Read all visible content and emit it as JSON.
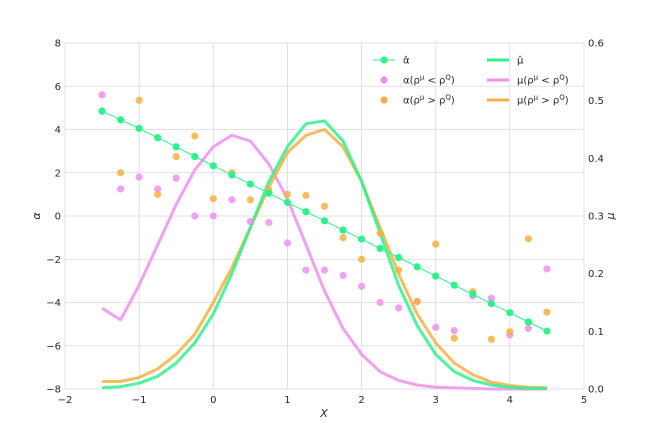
{
  "chart_data": {
    "type": "line",
    "xlabel": "X",
    "ylabel_left": "α",
    "ylabel_right": "μ",
    "xlim": [
      -2,
      5
    ],
    "ylim_left": [
      -8,
      8
    ],
    "ylim_right": [
      0,
      0.6
    ],
    "x_ticks": [
      -2,
      -1,
      0,
      1,
      2,
      3,
      4,
      5
    ],
    "x_tick_labels": [
      "−2",
      "−1",
      "0",
      "1",
      "2",
      "3",
      "4",
      "5"
    ],
    "y_left_ticks": [
      -8,
      -6,
      -4,
      -2,
      0,
      2,
      4,
      6,
      8
    ],
    "y_left_tick_labels": [
      "−8",
      "−6",
      "−4",
      "−2",
      "0",
      "2",
      "4",
      "6",
      "8"
    ],
    "y_right_ticks": [
      0,
      0.1,
      0.2,
      0.3,
      0.4,
      0.5,
      0.6
    ],
    "y_right_tick_labels": [
      "0.0",
      "0.1",
      "0.2",
      "0.3",
      "0.4",
      "0.5",
      "0.6"
    ],
    "grid": true,
    "legend_position": "top-right",
    "series": [
      {
        "name": "α̂",
        "legend_html": "α̂",
        "kind": "line-markers",
        "axis": "left",
        "color": "#2ef28c",
        "x": [
          -1.5,
          -1.25,
          -1.0,
          -0.75,
          -0.5,
          -0.25,
          0.0,
          0.25,
          0.5,
          0.75,
          1.0,
          1.25,
          1.5,
          1.75,
          2.0,
          2.25,
          2.5,
          2.75,
          3.0,
          3.25,
          3.5,
          3.75,
          4.0,
          4.25,
          4.5
        ],
        "y": [
          4.85,
          4.45,
          4.05,
          3.62,
          3.2,
          2.75,
          2.32,
          1.9,
          1.48,
          1.05,
          0.63,
          0.2,
          -0.22,
          -0.65,
          -1.07,
          -1.5,
          -1.92,
          -2.35,
          -2.78,
          -3.2,
          -3.62,
          -4.05,
          -4.47,
          -4.9,
          -5.32
        ]
      },
      {
        "name": "α(ρ^μ < ρ^Q)",
        "kind": "scatter",
        "axis": "left",
        "color": "#ee90ee",
        "x": [
          -1.5,
          -1.25,
          -1.0,
          -0.75,
          -0.5,
          -0.25,
          0.0,
          0.25,
          0.5,
          0.75,
          1.0,
          1.25,
          1.5,
          1.75,
          2.0,
          2.25,
          2.5,
          2.75,
          3.0,
          3.25,
          3.5,
          3.75,
          4.0,
          4.25,
          4.5
        ],
        "y": [
          5.6,
          1.25,
          1.8,
          1.25,
          1.75,
          0.0,
          0.0,
          0.75,
          -0.25,
          -0.3,
          -1.25,
          -2.5,
          -2.5,
          -2.75,
          -3.25,
          -4.0,
          -4.25,
          -3.95,
          -5.15,
          -5.3,
          -3.7,
          -3.8,
          -5.5,
          -5.2,
          -2.45
        ]
      },
      {
        "name": "α(ρ^μ > ρ^Q)",
        "kind": "scatter",
        "axis": "left",
        "color": "#f5b041",
        "x": [
          -1.5,
          -1.25,
          -1.0,
          -0.75,
          -0.5,
          -0.25,
          0.0,
          0.25,
          0.5,
          0.75,
          1.0,
          1.25,
          1.5,
          1.75,
          2.0,
          2.25,
          2.5,
          2.75,
          3.0,
          3.25,
          3.5,
          3.75,
          4.0,
          4.25,
          4.5
        ],
        "y": [
          4.85,
          2.0,
          5.35,
          1.0,
          2.75,
          3.7,
          0.8,
          2.0,
          0.75,
          1.2,
          1.0,
          0.95,
          0.45,
          -1.0,
          -2.0,
          -0.8,
          -2.5,
          -3.95,
          -1.3,
          -5.65,
          -3.5,
          -5.7,
          -5.35,
          -1.05,
          -4.45
        ]
      },
      {
        "name": "μ̂",
        "legend_html": "μ̂",
        "kind": "line",
        "axis": "right",
        "color": "#2ef28c",
        "x": [
          -1.5,
          -1.25,
          -1.0,
          -0.75,
          -0.5,
          -0.25,
          0.0,
          0.25,
          0.5,
          0.75,
          1.0,
          1.25,
          1.5,
          1.75,
          2.0,
          2.25,
          2.5,
          2.75,
          3.0,
          3.25,
          3.5,
          3.75,
          4.0,
          4.25,
          4.5
        ],
        "y": [
          0.002,
          0.004,
          0.01,
          0.022,
          0.045,
          0.08,
          0.13,
          0.2,
          0.28,
          0.36,
          0.42,
          0.46,
          0.465,
          0.43,
          0.36,
          0.27,
          0.18,
          0.11,
          0.06,
          0.03,
          0.015,
          0.007,
          0.003,
          0.001,
          0.001
        ]
      },
      {
        "name": "μ(ρ^μ < ρ^Q)",
        "kind": "line",
        "axis": "right",
        "color": "#ee90ee",
        "x": [
          -1.5,
          -1.25,
          -1.0,
          -0.75,
          -0.5,
          -0.25,
          0.0,
          0.25,
          0.5,
          0.75,
          1.0,
          1.25,
          1.5,
          1.75,
          2.0,
          2.25,
          2.5,
          2.75,
          3.0,
          3.25,
          3.5,
          3.75,
          4.0,
          4.25,
          4.5
        ],
        "y": [
          0.14,
          0.12,
          0.18,
          0.25,
          0.32,
          0.38,
          0.42,
          0.44,
          0.43,
          0.39,
          0.33,
          0.25,
          0.17,
          0.105,
          0.06,
          0.03,
          0.015,
          0.007,
          0.003,
          0.002,
          0.001,
          0.0,
          0.0,
          0.0,
          0.0
        ]
      },
      {
        "name": "μ(ρ^μ > ρ^Q)",
        "kind": "line",
        "axis": "right",
        "color": "#f5b041",
        "x": [
          -1.5,
          -1.25,
          -1.0,
          -0.75,
          -0.5,
          -0.25,
          0.0,
          0.25,
          0.5,
          0.75,
          1.0,
          1.25,
          1.5,
          1.75,
          2.0,
          2.25,
          2.5,
          2.75,
          3.0,
          3.25,
          3.5,
          3.75,
          4.0,
          4.25,
          4.5
        ],
        "y": [
          0.013,
          0.013,
          0.02,
          0.035,
          0.06,
          0.095,
          0.15,
          0.21,
          0.28,
          0.35,
          0.41,
          0.44,
          0.45,
          0.42,
          0.36,
          0.28,
          0.2,
          0.13,
          0.08,
          0.045,
          0.025,
          0.012,
          0.006,
          0.003,
          0.002
        ]
      }
    ]
  }
}
